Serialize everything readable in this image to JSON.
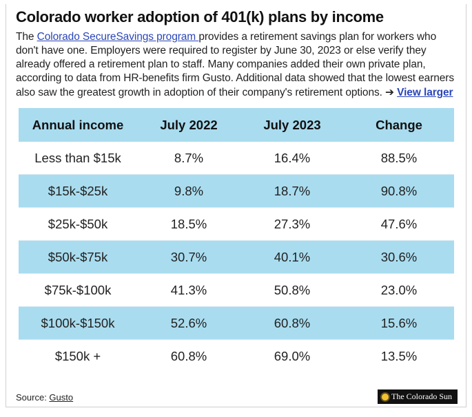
{
  "title": "Colorado worker adoption of 401(k) plans by income",
  "intro": {
    "before": "The ",
    "link": "Colorado SecureSavings program ",
    "after": "provides a retirement savings plan for workers who don't have one. Employers were required to register by June 30, 2023 or else verify they already offered a retirement plan to staff. Many companies added their own private plan, according to data from HR-benefits firm Gusto. Additional data showed that the lowest earners also saw the greatest growth in adoption of their company's retirement options. ",
    "arrow": "➔",
    "view_larger": "View larger"
  },
  "table": {
    "headers": [
      "Annual income",
      "July 2022",
      "July 2023",
      "Change"
    ],
    "rows": [
      [
        "Less than $15k",
        "8.7%",
        "16.4%",
        "88.5%"
      ],
      [
        "$15k-$25k",
        "9.8%",
        "18.7%",
        "90.8%"
      ],
      [
        "$25k-$50k",
        "18.5%",
        "27.3%",
        "47.6%"
      ],
      [
        "$50k-$75k",
        "30.7%",
        "40.1%",
        "30.6%"
      ],
      [
        "$75k-$100k",
        "41.3%",
        "50.8%",
        "23.0%"
      ],
      [
        "$100k-$150k",
        "52.6%",
        "60.8%",
        "15.6%"
      ],
      [
        "$150k +",
        "60.8%",
        "69.0%",
        "13.5%"
      ]
    ]
  },
  "footer": {
    "source_label": "Source: ",
    "source_link": "Gusto",
    "logo_text": "The Colorado Sun"
  },
  "colors": {
    "header_band": "#a9dcef",
    "link": "#2a45b8"
  }
}
